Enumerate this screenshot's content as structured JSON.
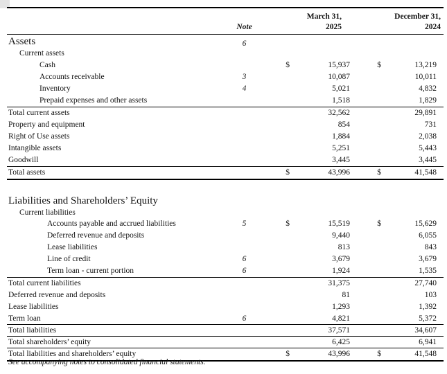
{
  "header": {
    "note_label": "Note",
    "period1_line1": "March 31,",
    "period1_line2": "2025",
    "period2_line1": "December 31,",
    "period2_line2": "2024"
  },
  "assets": {
    "section_label": "Assets",
    "section_note": "6",
    "current_assets_label": "Current assets",
    "rows": {
      "cash": {
        "label": "Cash",
        "note": "",
        "d1": "$",
        "v1": "15,937",
        "d2": "$",
        "v2": "13,219"
      },
      "accounts_receivable": {
        "label": "Accounts receivable",
        "note": "3",
        "d1": "",
        "v1": "10,087",
        "d2": "",
        "v2": "10,011"
      },
      "inventory": {
        "label": "Inventory",
        "note": "4",
        "d1": "",
        "v1": "5,021",
        "d2": "",
        "v2": "4,832"
      },
      "prepaid": {
        "label": "Prepaid expenses and other assets",
        "note": "",
        "d1": "",
        "v1": "1,518",
        "d2": "",
        "v2": "1,829"
      },
      "total_current_assets": {
        "label": "Total current assets",
        "note": "",
        "d1": "",
        "v1": "32,562",
        "d2": "",
        "v2": "29,891"
      },
      "property_equipment": {
        "label": "Property and equipment",
        "note": "",
        "d1": "",
        "v1": "854",
        "d2": "",
        "v2": "731"
      },
      "right_of_use": {
        "label": "Right of Use assets",
        "note": "",
        "d1": "",
        "v1": "1,884",
        "d2": "",
        "v2": "2,038"
      },
      "intangible": {
        "label": "Intangible assets",
        "note": "",
        "d1": "",
        "v1": "5,251",
        "d2": "",
        "v2": "5,443"
      },
      "goodwill": {
        "label": "Goodwill",
        "note": "",
        "d1": "",
        "v1": "3,445",
        "d2": "",
        "v2": "3,445"
      },
      "total_assets": {
        "label": "Total assets",
        "note": "",
        "d1": "$",
        "v1": "43,996",
        "d2": "$",
        "v2": "41,548"
      }
    }
  },
  "liabilities": {
    "section_label": "Liabilities and Shareholders’ Equity",
    "current_liabilities_label": "Current liabilities",
    "rows": {
      "accounts_payable": {
        "label": "Accounts payable and accrued liabilities",
        "note": "5",
        "d1": "$",
        "v1": "15,519",
        "d2": "$",
        "v2": "15,629"
      },
      "deferred_revenue_current": {
        "label": "Deferred revenue and deposits",
        "note": "",
        "d1": "",
        "v1": "9,440",
        "d2": "",
        "v2": "6,055"
      },
      "lease_liabilities_current": {
        "label": "Lease liabilities",
        "note": "",
        "d1": "",
        "v1": "813",
        "d2": "",
        "v2": "843"
      },
      "line_of_credit": {
        "label": "Line of credit",
        "note": "6",
        "d1": "",
        "v1": "3,679",
        "d2": "",
        "v2": "3,679"
      },
      "term_loan_current": {
        "label": "Term loan - current portion",
        "note": "6",
        "d1": "",
        "v1": "1,924",
        "d2": "",
        "v2": "1,535"
      },
      "total_current_liabilities": {
        "label": "Total current liabilities",
        "note": "",
        "d1": "",
        "v1": "31,375",
        "d2": "",
        "v2": "27,740"
      },
      "deferred_revenue_noncurrent": {
        "label": "Deferred revenue and deposits",
        "note": "",
        "d1": "",
        "v1": "81",
        "d2": "",
        "v2": "103"
      },
      "lease_liabilities_noncurrent": {
        "label": "Lease liabilities",
        "note": "",
        "d1": "",
        "v1": "1,293",
        "d2": "",
        "v2": "1,392"
      },
      "term_loan": {
        "label": "Term loan",
        "note": "6",
        "d1": "",
        "v1": "4,821",
        "d2": "",
        "v2": "5,372"
      },
      "total_liabilities": {
        "label": "Total liabilities",
        "note": "",
        "d1": "",
        "v1": "37,571",
        "d2": "",
        "v2": "34,607"
      },
      "total_shareholders_equity": {
        "label": "Total shareholders’ equity",
        "note": "",
        "d1": "",
        "v1": "6,425",
        "d2": "",
        "v2": "6,941"
      },
      "total_liabilities_equity": {
        "label": "Total liabilities and shareholders’ equity",
        "note": "",
        "d1": "$",
        "v1": "43,996",
        "d2": "$",
        "v2": "41,548"
      }
    }
  },
  "footer": {
    "text": "See accompanying notes to consolidated financial statements."
  },
  "colors": {
    "text": "#121212",
    "rule": "#000000",
    "background": "#ffffff"
  }
}
